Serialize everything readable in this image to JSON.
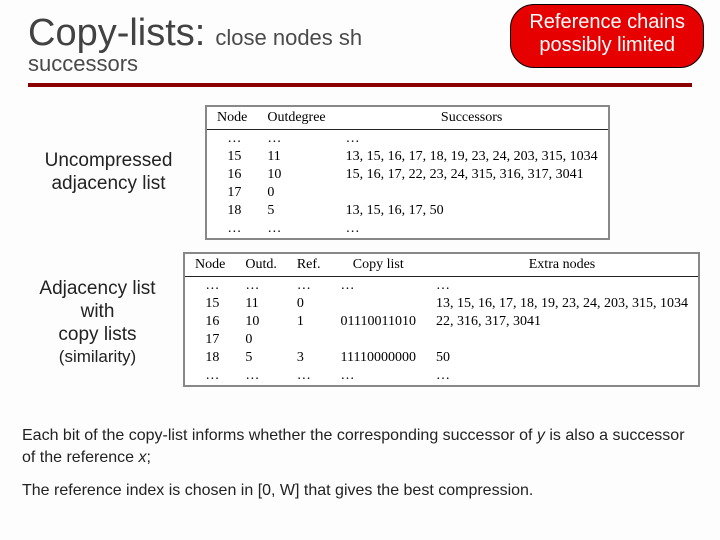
{
  "header": {
    "title": "Copy-lists:",
    "subtitle": "close nodes sh",
    "line2": "successors"
  },
  "badge": {
    "line1": "Reference chains",
    "line2": "possibly limited"
  },
  "section1": {
    "label1": "Uncompressed",
    "label2": "adjacency list",
    "headers": [
      "Node",
      "Outdegree",
      "Successors"
    ],
    "rows": [
      [
        "…",
        "…",
        "…"
      ],
      [
        "15",
        "11",
        "13, 15, 16, 17, 18, 19, 23, 24, 203, 315, 1034"
      ],
      [
        "16",
        "10",
        "15, 16, 17, 22, 23, 24, 315, 316, 317, 3041"
      ],
      [
        "17",
        "0",
        ""
      ],
      [
        "18",
        "5",
        "13, 15, 16, 17, 50"
      ],
      [
        "…",
        "…",
        "…"
      ]
    ]
  },
  "section2": {
    "label1": "Adjacency list with",
    "label2": "copy lists",
    "label3": "(similarity)",
    "headers": [
      "Node",
      "Outd.",
      "Ref.",
      "Copy list",
      "Extra nodes"
    ],
    "rows": [
      [
        "…",
        "…",
        "…",
        "…",
        "…"
      ],
      [
        "15",
        "11",
        "0",
        "",
        "13, 15, 16, 17, 18, 19, 23, 24, 203, 315, 1034"
      ],
      [
        "16",
        "10",
        "1",
        "01110011010",
        "22, 316, 317, 3041"
      ],
      [
        "17",
        "0",
        "",
        "",
        ""
      ],
      [
        "18",
        "5",
        "3",
        "11110000000",
        "50"
      ],
      [
        "…",
        "…",
        "…",
        "…",
        "…"
      ]
    ]
  },
  "footer": {
    "p1a": "Each bit of the copy-list informs whether the corresponding successor of ",
    "p1y": "y",
    "p1b": " is also a successor of the reference ",
    "p1x": "x",
    "p1c": ";",
    "p2": "The reference index is chosen in [0, W] that gives the best compression."
  }
}
